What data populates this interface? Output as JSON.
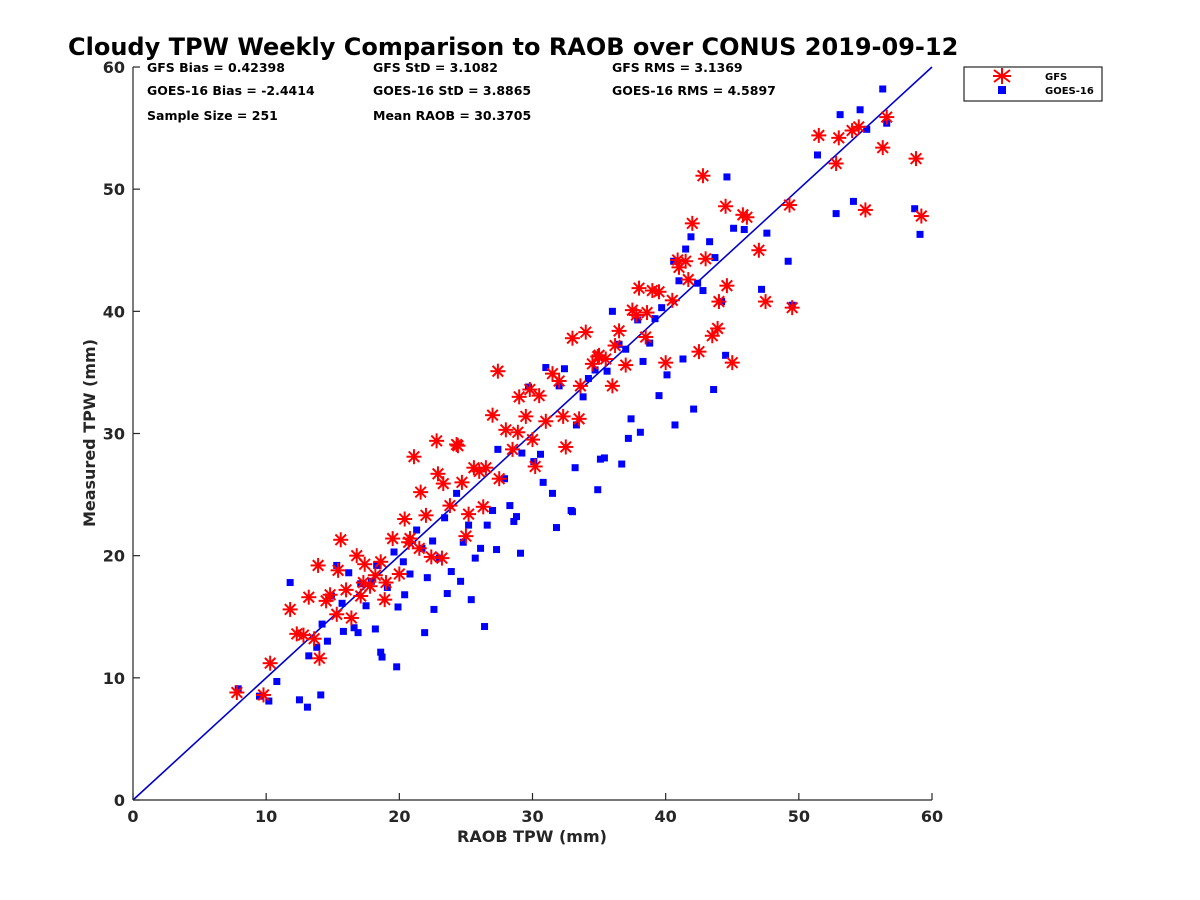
{
  "chart_data": {
    "type": "scatter",
    "title": "Cloudy TPW Weekly Comparison to RAOB over CONUS 2019-09-12",
    "xlabel": "RAOB TPW (mm)",
    "ylabel": "Measured TPW (mm)",
    "xlim": [
      0,
      60
    ],
    "ylim": [
      0,
      60
    ],
    "xticks": [
      0,
      10,
      20,
      30,
      40,
      50,
      60
    ],
    "yticks": [
      0,
      10,
      20,
      30,
      40,
      50,
      60
    ],
    "grid": false,
    "legend_position": "outside-top-right",
    "stats": [
      "GFS Bias = 0.42398",
      "GFS StD = 3.1082",
      "GFS RMS = 3.1369",
      "GOES-16 Bias = -2.4414",
      "GOES-16 StD = 3.8865",
      "GOES-16 RMS = 4.5897",
      "Sample Size = 251",
      "Mean RAOB = 30.3705"
    ],
    "reference_line": {
      "x": [
        0,
        60
      ],
      "y": [
        0,
        60
      ],
      "color": "#0000cc"
    },
    "series": [
      {
        "name": "GFS",
        "marker": "asterisk",
        "color": "#ff0000",
        "x": [
          7.8,
          9.8,
          10.3,
          11.8,
          12.3,
          12.8,
          13.2,
          13.6,
          14.0,
          14.5,
          14.8,
          15.3,
          15.6,
          16.0,
          16.4,
          16.8,
          17.1,
          17.4,
          17.8,
          18.2,
          18.6,
          19.0,
          19.5,
          20.0,
          20.4,
          20.8,
          21.1,
          21.6,
          22.0,
          22.4,
          22.9,
          23.3,
          23.8,
          24.3,
          24.7,
          25.2,
          25.6,
          26.0,
          26.5,
          27.0,
          27.5,
          28.0,
          28.5,
          29.0,
          29.5,
          30.0,
          30.5,
          31.0,
          31.5,
          32.0,
          32.5,
          33.0,
          33.5,
          34.0,
          34.5,
          35.0,
          35.5,
          36.0,
          36.5,
          37.0,
          37.5,
          38.0,
          38.5,
          39.0,
          39.5,
          40.0,
          40.5,
          41.0,
          41.5,
          42.0,
          42.5,
          43.0,
          43.5,
          44.0,
          44.5,
          45.0,
          45.8,
          47.0,
          47.5,
          49.3,
          49.5,
          51.5,
          52.8,
          53.0,
          54.0,
          54.5,
          55.0,
          56.3,
          56.6,
          58.8,
          59.2,
          17.3,
          18.9,
          20.7,
          22.8,
          24.4,
          25.0,
          27.4,
          28.9,
          30.2,
          32.3,
          34.9,
          36.2,
          38.6,
          41.7,
          42.8,
          44.6,
          46.1,
          13.9,
          15.4,
          21.5,
          23.2,
          26.3,
          29.8,
          33.6,
          37.8,
          40.9,
          43.9
        ],
        "y": [
          8.8,
          8.6,
          11.2,
          15.6,
          13.6,
          13.5,
          16.6,
          13.2,
          11.6,
          16.3,
          16.8,
          15.2,
          21.3,
          17.2,
          14.9,
          20.0,
          16.7,
          19.3,
          17.5,
          18.4,
          19.5,
          17.8,
          21.4,
          18.5,
          23.0,
          21.4,
          28.1,
          25.2,
          23.3,
          19.9,
          26.7,
          25.9,
          24.1,
          29.1,
          26.0,
          23.4,
          27.2,
          26.9,
          27.2,
          31.5,
          26.3,
          30.3,
          28.7,
          33.0,
          31.4,
          29.5,
          33.1,
          31.0,
          34.9,
          34.3,
          28.9,
          37.8,
          31.2,
          38.3,
          35.7,
          36.4,
          36.1,
          33.9,
          38.4,
          35.6,
          40.1,
          41.9,
          37.9,
          41.7,
          41.6,
          35.8,
          40.9,
          43.6,
          44.1,
          47.2,
          36.7,
          44.3,
          38.0,
          40.8,
          48.6,
          35.8,
          47.9,
          45.0,
          40.8,
          48.7,
          40.3,
          54.4,
          52.1,
          54.2,
          54.8,
          55.1,
          48.3,
          53.4,
          55.9,
          52.5,
          47.8,
          17.8,
          16.4,
          21.1,
          29.4,
          29.0,
          21.6,
          35.1,
          30.1,
          27.3,
          31.4,
          36.3,
          37.2,
          39.9,
          42.6,
          51.1,
          42.1,
          47.7,
          19.2,
          18.8,
          20.6,
          19.8,
          24.0,
          33.6,
          33.9,
          39.7,
          44.2,
          38.6
        ]
      },
      {
        "name": "GOES-16",
        "marker": "square",
        "color": "#0000ff",
        "x": [
          7.9,
          9.5,
          10.2,
          10.8,
          11.8,
          12.5,
          13.1,
          13.8,
          14.2,
          14.6,
          14.9,
          15.3,
          15.7,
          16.2,
          16.6,
          17.1,
          17.5,
          17.9,
          18.3,
          18.7,
          19.1,
          19.6,
          19.9,
          20.3,
          20.8,
          21.3,
          21.7,
          22.1,
          22.5,
          23.0,
          23.4,
          23.9,
          24.3,
          24.8,
          25.2,
          25.7,
          26.1,
          26.6,
          27.0,
          27.4,
          27.9,
          28.3,
          28.8,
          29.2,
          29.7,
          30.1,
          30.6,
          31.0,
          31.5,
          32.0,
          32.4,
          32.9,
          33.3,
          33.8,
          34.2,
          34.7,
          35.1,
          35.6,
          36.0,
          36.5,
          37.0,
          37.4,
          37.9,
          38.3,
          38.8,
          39.2,
          39.7,
          40.1,
          40.6,
          41.0,
          41.5,
          41.9,
          42.4,
          42.8,
          43.3,
          43.7,
          44.2,
          44.6,
          45.1,
          45.9,
          47.2,
          47.6,
          49.2,
          49.5,
          51.4,
          52.8,
          53.1,
          54.1,
          54.6,
          55.1,
          56.3,
          56.6,
          58.7,
          59.1,
          14.1,
          16.9,
          18.6,
          19.8,
          21.9,
          23.6,
          25.4,
          27.3,
          29.1,
          31.8,
          33.2,
          35.4,
          36.7,
          38.1,
          40.7,
          42.1,
          44.5,
          13.2,
          15.8,
          18.2,
          20.4,
          22.6,
          24.6,
          26.4,
          28.6,
          30.8,
          33.0,
          34.9,
          37.2,
          39.5,
          41.3,
          43.6
        ],
        "y": [
          9.1,
          8.5,
          8.1,
          9.7,
          17.8,
          8.2,
          7.6,
          12.5,
          14.4,
          13.0,
          16.7,
          19.2,
          16.1,
          18.6,
          14.1,
          17.7,
          15.9,
          17.9,
          19.2,
          11.7,
          17.4,
          20.3,
          15.8,
          19.5,
          18.5,
          22.1,
          20.6,
          18.2,
          21.2,
          19.8,
          23.1,
          18.7,
          25.1,
          21.1,
          22.5,
          19.8,
          20.6,
          22.5,
          23.7,
          28.7,
          26.3,
          24.1,
          23.2,
          28.4,
          33.8,
          27.7,
          28.3,
          35.4,
          25.1,
          33.9,
          35.3,
          23.7,
          30.7,
          33.0,
          34.5,
          35.2,
          27.9,
          35.1,
          40.0,
          37.3,
          36.9,
          31.2,
          39.3,
          35.9,
          37.4,
          39.4,
          40.3,
          34.8,
          44.1,
          42.5,
          45.1,
          46.1,
          42.3,
          41.7,
          45.7,
          44.4,
          40.8,
          51.0,
          46.8,
          46.7,
          41.8,
          46.4,
          44.1,
          40.5,
          52.8,
          48.0,
          56.1,
          49.0,
          56.5,
          54.9,
          58.2,
          55.4,
          48.4,
          46.3,
          8.6,
          13.7,
          12.1,
          10.9,
          13.7,
          16.9,
          16.4,
          20.5,
          20.2,
          22.3,
          27.2,
          28.0,
          27.5,
          30.1,
          30.7,
          32.0,
          36.4,
          11.8,
          13.8,
          14.0,
          16.8,
          15.6,
          17.9,
          14.2,
          22.8,
          26.0,
          23.6,
          25.4,
          29.6,
          33.1,
          36.1,
          33.6
        ]
      }
    ]
  }
}
